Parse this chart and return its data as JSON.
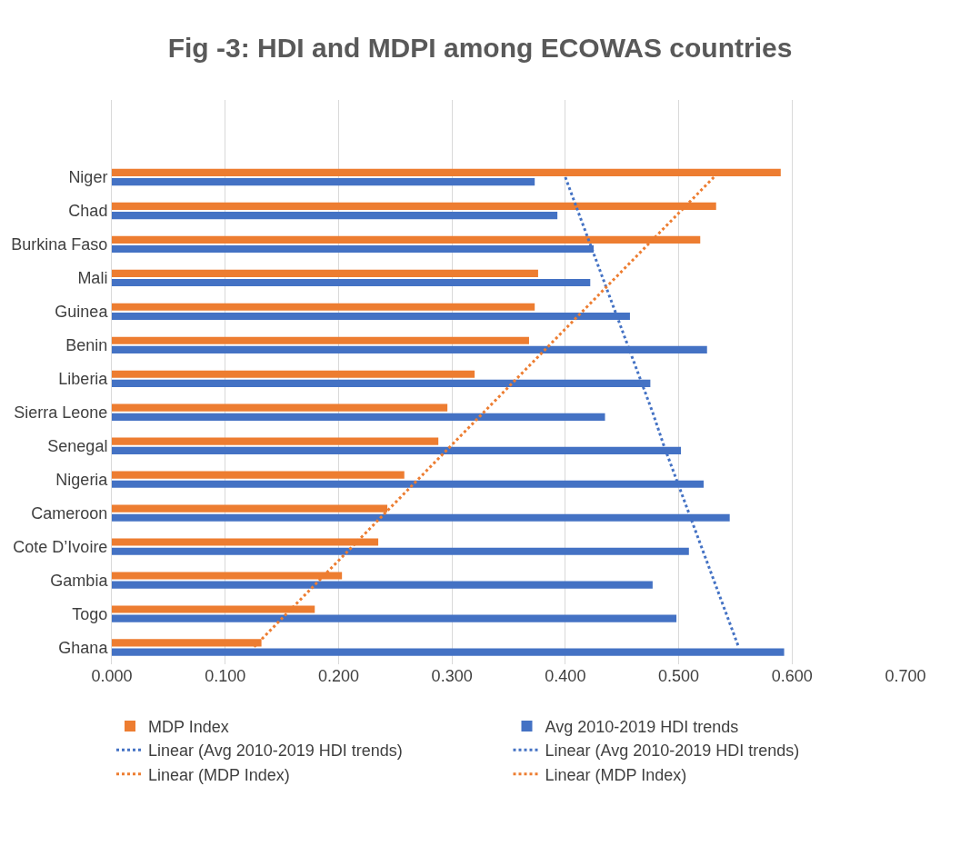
{
  "chart_data": {
    "type": "bar",
    "orientation": "horizontal",
    "title": "Fig -3: HDI and MDPI among ECOWAS countries",
    "categories": [
      "Niger",
      "Chad",
      "Burkina Faso",
      "Mali",
      "Guinea",
      "Benin",
      "Liberia",
      "Sierra Leone",
      "Senegal",
      "Nigeria",
      "Cameroon",
      "Cote D’Ivoire",
      "Gambia",
      "Togo",
      "Ghana"
    ],
    "series": [
      {
        "name": "MDP Index",
        "color": "#ed7d31",
        "values": [
          0.59,
          0.533,
          0.519,
          0.376,
          0.373,
          0.368,
          0.32,
          0.296,
          0.288,
          0.258,
          0.243,
          0.235,
          0.203,
          0.179,
          0.132
        ]
      },
      {
        "name": "Avg 2010-2019 HDI trends",
        "color": "#4472c4",
        "values": [
          0.373,
          0.393,
          0.425,
          0.422,
          0.457,
          0.525,
          0.475,
          0.435,
          0.502,
          0.522,
          0.545,
          0.509,
          0.477,
          0.498,
          0.593
        ]
      },
      {
        "name": "Linear (Avg 2010-2019 HDI trends)",
        "type": "line",
        "line_style": "dotted",
        "color": "#4472c4",
        "values": [
          0.4,
          0.411,
          0.422,
          0.433,
          0.444,
          0.455,
          0.466,
          0.477,
          0.487,
          0.498,
          0.509,
          0.52,
          0.531,
          0.542,
          0.553
        ]
      },
      {
        "name": "Linear (Avg 2010-2019 HDI trends)",
        "type": "line",
        "line_style": "dotted",
        "color": "#4472c4",
        "values": [
          null,
          null,
          null,
          null,
          null,
          null,
          null,
          null,
          null,
          null,
          null,
          null,
          null,
          null,
          null
        ]
      },
      {
        "name": "Linear (MDP Index)",
        "type": "line",
        "line_style": "dotted",
        "color": "#ed7d31",
        "values": [
          0.531,
          0.502,
          0.473,
          0.444,
          0.415,
          0.386,
          0.357,
          0.328,
          0.299,
          0.27,
          0.241,
          0.212,
          0.183,
          0.154,
          0.125
        ]
      },
      {
        "name": "Linear (MDP Index)",
        "type": "line",
        "line_style": "dotted",
        "color": "#ed7d31",
        "values": [
          null,
          null,
          null,
          null,
          null,
          null,
          null,
          null,
          null,
          null,
          null,
          null,
          null,
          null,
          null
        ]
      }
    ],
    "xlim": [
      0,
      0.7
    ],
    "xticks": [
      {
        "value": 0,
        "label": "0.000"
      },
      {
        "value": 0.1,
        "label": "0.100"
      },
      {
        "value": 0.2,
        "label": "0.200"
      },
      {
        "value": 0.3,
        "label": "0.300"
      },
      {
        "value": 0.4,
        "label": "0.400"
      },
      {
        "value": 0.5,
        "label": "0.500"
      },
      {
        "value": 0.6,
        "label": "0.600"
      },
      {
        "value": 0.7,
        "label": "0.700"
      }
    ],
    "grid": "x",
    "legend": "bottom"
  }
}
